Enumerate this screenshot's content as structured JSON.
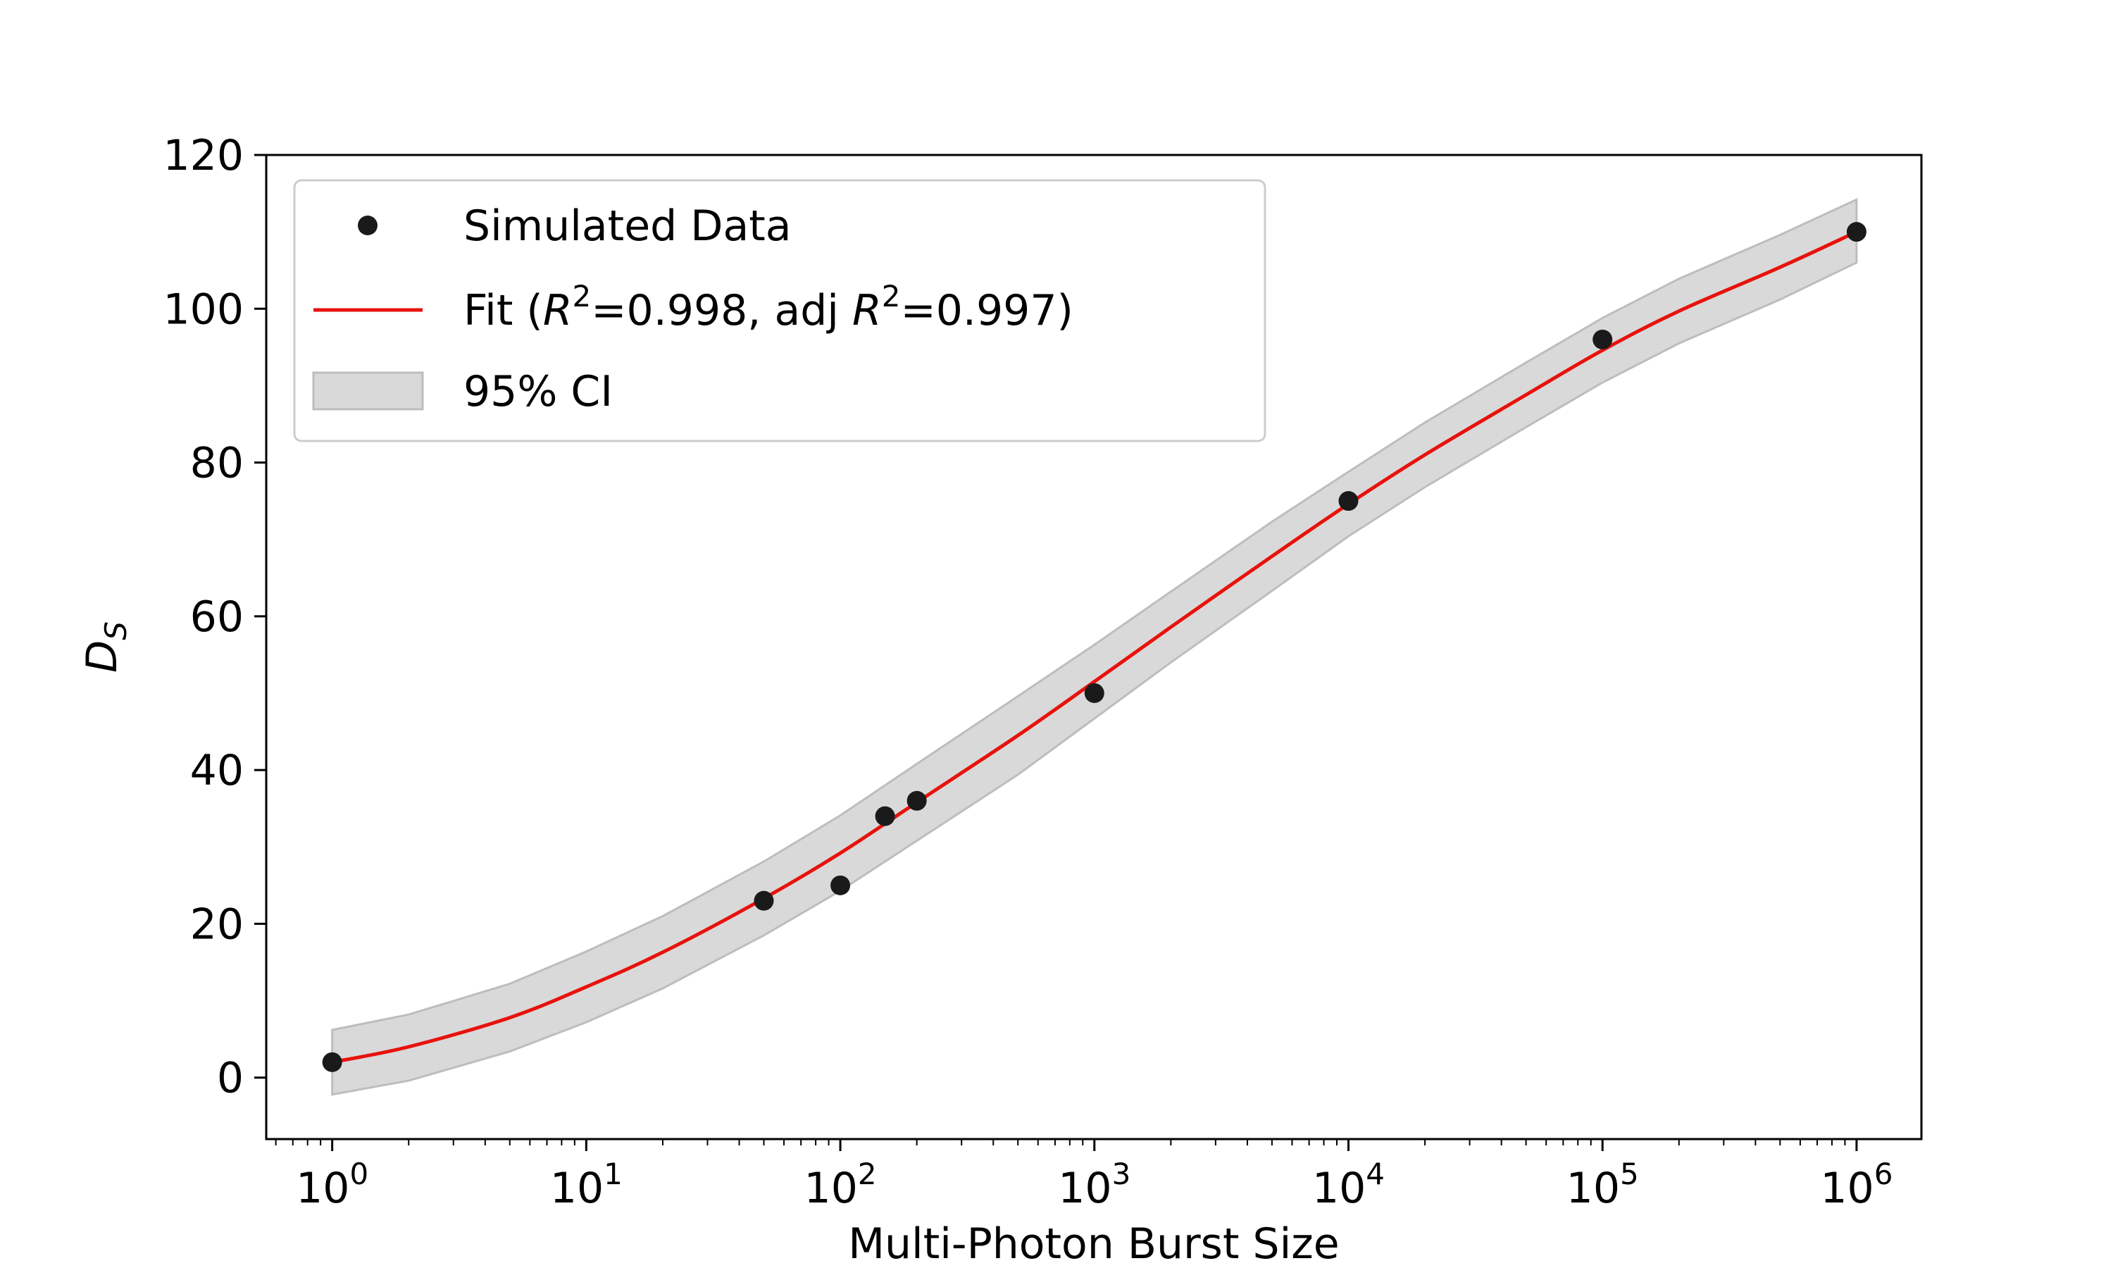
{
  "chart_data": {
    "type": "line",
    "xscale": "log",
    "xlim": [
      0.55,
      1800000
    ],
    "ylim": [
      -8,
      120
    ],
    "xlabel": "Multi-Photon Burst Size",
    "ylabel": {
      "base": "D",
      "sub": "S"
    },
    "x_ticks": [
      {
        "value": 1,
        "base": "10",
        "exp": "0"
      },
      {
        "value": 10,
        "base": "10",
        "exp": "1"
      },
      {
        "value": 100,
        "base": "10",
        "exp": "2"
      },
      {
        "value": 1000,
        "base": "10",
        "exp": "3"
      },
      {
        "value": 10000,
        "base": "10",
        "exp": "4"
      },
      {
        "value": 100000,
        "base": "10",
        "exp": "5"
      },
      {
        "value": 1000000,
        "base": "10",
        "exp": "6"
      }
    ],
    "y_ticks": [
      0,
      20,
      40,
      60,
      80,
      100,
      120
    ],
    "series": [
      {
        "name": "Simulated Data",
        "kind": "scatter",
        "color": "#1a1a1a",
        "x": [
          1,
          50,
          100,
          150,
          200,
          1000,
          10000,
          100000,
          1000000
        ],
        "y": [
          2,
          23,
          25,
          34,
          36,
          50,
          75,
          96,
          110
        ]
      },
      {
        "name": "Fit",
        "kind": "line",
        "color": "#e8120c",
        "r2": "0.998",
        "adj_r2": "0.997",
        "x": [
          1,
          2,
          5,
          10,
          20,
          50,
          100,
          200,
          500,
          1000,
          2000,
          5000,
          10000,
          20000,
          50000,
          100000,
          200000,
          500000,
          1000000
        ],
        "y": [
          2,
          4,
          7.8,
          11.8,
          16.3,
          23.3,
          29.2,
          35.8,
          44.5,
          51.5,
          58.6,
          67.8,
          74.6,
          81.0,
          88.8,
          94.6,
          99.7,
          105.4,
          110
        ]
      },
      {
        "name": "95% CI",
        "kind": "band",
        "color": "#d9d9d9",
        "x": [
          1,
          2,
          5,
          10,
          20,
          50,
          100,
          200,
          500,
          1000,
          2000,
          5000,
          10000,
          20000,
          50000,
          100000,
          200000,
          500000,
          1000000
        ],
        "lower": [
          -2.2,
          -0.4,
          3.4,
          7.2,
          11.6,
          18.5,
          24.3,
          30.8,
          39.4,
          46.7,
          54.0,
          63.3,
          70.4,
          76.8,
          84.6,
          90.4,
          95.5,
          101.2,
          106
        ],
        "upper": [
          6.2,
          8.2,
          12.2,
          16.4,
          21.0,
          28.1,
          34.1,
          40.8,
          49.6,
          56.3,
          63.2,
          72.3,
          78.8,
          85.2,
          93.0,
          98.8,
          103.9,
          109.6,
          114.2
        ]
      }
    ],
    "legend": {
      "position": "top-left",
      "entries": [
        {
          "kind": "scatter",
          "label": "Simulated Data"
        },
        {
          "kind": "line",
          "label_parts": [
            "Fit (",
            "R",
            "2",
            "=0.998, adj ",
            "R",
            "2",
            "=0.997)"
          ]
        },
        {
          "kind": "band",
          "label": "95% CI"
        }
      ]
    }
  }
}
